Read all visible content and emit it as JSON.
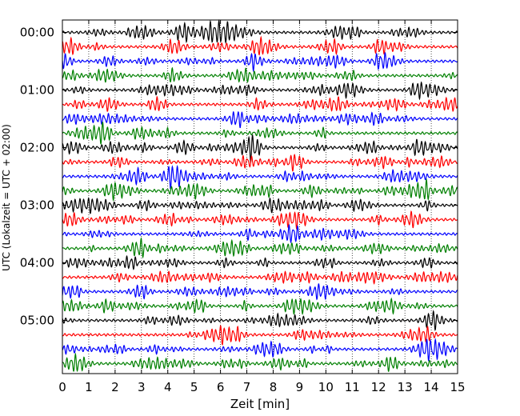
{
  "chart_data": {
    "type": "line",
    "title": "",
    "xlabel": "Zeit  [min]",
    "ylabel": "UTC (Lokalzeit = UTC + 02:00)",
    "xlim": [
      0,
      15
    ],
    "x_ticks": [
      "0",
      "1",
      "2",
      "3",
      "4",
      "5",
      "6",
      "7",
      "8",
      "9",
      "10",
      "11",
      "12",
      "13",
      "14",
      "15"
    ],
    "y_ticks": [
      "00:00",
      "01:00",
      "02:00",
      "03:00",
      "04:00",
      "05:00"
    ],
    "grid": "vertical dotted at each minute",
    "trace_count": 24,
    "trace_interval_minutes": 15,
    "trace_colors": [
      "#000000",
      "#ff0000",
      "#0000ff",
      "#008000"
    ]
  }
}
